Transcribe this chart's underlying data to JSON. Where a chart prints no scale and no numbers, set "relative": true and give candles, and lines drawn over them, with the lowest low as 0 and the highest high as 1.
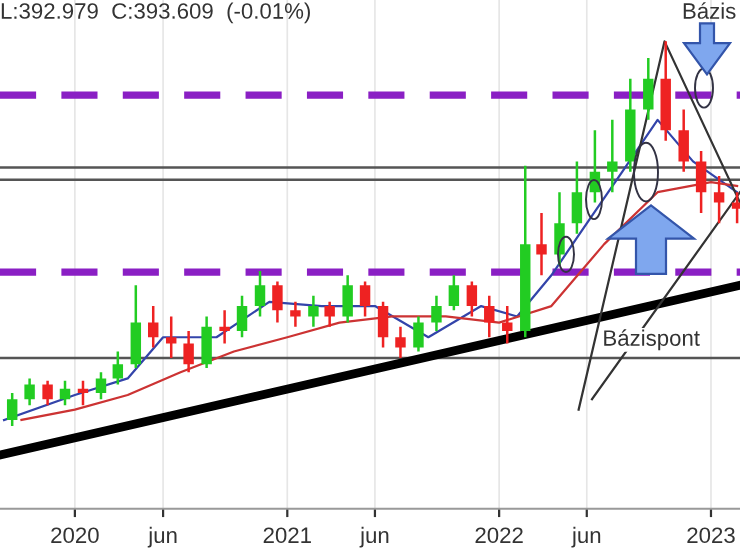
{
  "chart_data": {
    "type": "candlestick",
    "relative": true,
    "x": [
      "2019-09-15",
      "2019-10-15",
      "2019-11-15",
      "2019-12-15",
      "2020-01-15",
      "2020-02-15",
      "2020-03-15",
      "2020-04-15",
      "2020-05-15",
      "2020-06-15",
      "2020-07-15",
      "2020-08-15",
      "2020-09-15",
      "2020-10-15",
      "2020-11-15",
      "2020-12-15",
      "2021-01-15",
      "2021-02-15",
      "2021-03-15",
      "2021-04-15",
      "2021-05-15",
      "2021-06-15",
      "2021-07-15",
      "2021-08-15",
      "2021-09-15",
      "2021-10-15",
      "2021-11-15",
      "2021-12-15",
      "2022-01-15",
      "2022-02-15",
      "2022-03-15",
      "2022-04-15",
      "2022-05-15",
      "2022-06-15",
      "2022-07-15",
      "2022-08-15",
      "2022-09-15",
      "2022-10-15",
      "2022-11-15",
      "2022-12-15",
      "2023-01-15",
      "2023-02-15"
    ],
    "ohlc": [
      [
        0.016,
        0.086,
        0,
        0.07
      ],
      [
        0.07,
        0.124,
        0.054,
        0.108
      ],
      [
        0.108,
        0.118,
        0.054,
        0.07
      ],
      [
        0.07,
        0.118,
        0.054,
        0.097
      ],
      [
        0.097,
        0.118,
        0.054,
        0.086
      ],
      [
        0.086,
        0.14,
        0.07,
        0.124
      ],
      [
        0.124,
        0.194,
        0.108,
        0.161
      ],
      [
        0.161,
        0.366,
        0.151,
        0.269
      ],
      [
        0.269,
        0.312,
        0.204,
        0.231
      ],
      [
        0.231,
        0.285,
        0.177,
        0.215
      ],
      [
        0.215,
        0.247,
        0.14,
        0.161
      ],
      [
        0.161,
        0.285,
        0.151,
        0.258
      ],
      [
        0.258,
        0.301,
        0.215,
        0.247
      ],
      [
        0.247,
        0.339,
        0.231,
        0.312
      ],
      [
        0.312,
        0.403,
        0.285,
        0.366
      ],
      [
        0.366,
        0.376,
        0.269,
        0.301
      ],
      [
        0.301,
        0.323,
        0.258,
        0.285
      ],
      [
        0.285,
        0.339,
        0.258,
        0.312
      ],
      [
        0.312,
        0.323,
        0.258,
        0.285
      ],
      [
        0.285,
        0.392,
        0.269,
        0.366
      ],
      [
        0.366,
        0.376,
        0.285,
        0.312
      ],
      [
        0.312,
        0.323,
        0.204,
        0.231
      ],
      [
        0.231,
        0.258,
        0.177,
        0.204
      ],
      [
        0.204,
        0.285,
        0.194,
        0.269
      ],
      [
        0.269,
        0.339,
        0.247,
        0.312
      ],
      [
        0.312,
        0.392,
        0.301,
        0.366
      ],
      [
        0.366,
        0.376,
        0.285,
        0.312
      ],
      [
        0.312,
        0.339,
        0.231,
        0.269
      ],
      [
        0.269,
        0.312,
        0.215,
        0.247
      ],
      [
        0.247,
        0.677,
        0.231,
        0.473
      ],
      [
        0.473,
        0.554,
        0.392,
        0.446
      ],
      [
        0.446,
        0.608,
        0.419,
        0.527
      ],
      [
        0.527,
        0.688,
        0.5,
        0.608
      ],
      [
        0.608,
        0.769,
        0.581,
        0.661
      ],
      [
        0.661,
        0.796,
        0.608,
        0.688
      ],
      [
        0.688,
        0.903,
        0.661,
        0.823
      ],
      [
        0.823,
        0.957,
        0.796,
        0.903
      ],
      [
        0.903,
        1,
        0.742,
        0.769
      ],
      [
        0.769,
        0.823,
        0.661,
        0.688
      ],
      [
        0.688,
        0.715,
        0.554,
        0.608
      ],
      [
        0.608,
        0.65,
        0.527,
        0.581
      ],
      [
        0.581,
        0.608,
        0.527,
        0.565
      ]
    ],
    "colors": [
      "#22cc22",
      "#22cc22",
      "#ee2222",
      "#22cc22",
      "#ee2222",
      "#22cc22",
      "#22cc22",
      "#22cc22",
      "#ee2222",
      "#ee2222",
      "#ee2222",
      "#22cc22",
      "#ee2222",
      "#22cc22",
      "#22cc22",
      "#ee2222",
      "#ee2222",
      "#22cc22",
      "#ee2222",
      "#22cc22",
      "#ee2222",
      "#ee2222",
      "#ee2222",
      "#22cc22",
      "#22cc22",
      "#22cc22",
      "#ee2222",
      "#ee2222",
      "#ee2222",
      "#22cc22",
      "#ee2222",
      "#22cc22",
      "#22cc22",
      "#22cc22",
      "#22cc22",
      "#22cc22",
      "#22cc22",
      "#ee2222",
      "#ee2222",
      "#ee2222",
      "#ee2222",
      "#ee2222"
    ],
    "series": [
      {
        "type": "line",
        "color": "#3344aa",
        "x": [
          "2019-09-01",
          "2020-01-01",
          "2020-04-01",
          "2020-06-01",
          "2020-09-01",
          "2020-12-01",
          "2021-03-01",
          "2021-06-01",
          "2021-09-01",
          "2021-12-01",
          "2022-02-01",
          "2022-04-01",
          "2022-06-01",
          "2022-08-01",
          "2022-10-01",
          "2022-12-01",
          "2023-02-15"
        ],
        "values": [
          0.016,
          0.081,
          0.124,
          0.231,
          0.231,
          0.323,
          0.312,
          0.312,
          0.231,
          0.312,
          0.285,
          0.392,
          0.527,
          0.661,
          0.796,
          0.688,
          0.608
        ]
      },
      {
        "type": "line",
        "color": "#cc3333",
        "x": [
          "2019-10-01",
          "2020-01-01",
          "2020-04-01",
          "2020-07-01",
          "2020-10-01",
          "2021-01-01",
          "2021-04-01",
          "2021-07-01",
          "2021-10-01",
          "2022-01-01",
          "2022-04-01",
          "2022-07-01",
          "2022-10-01",
          "2023-01-01",
          "2023-02-15"
        ],
        "values": [
          0.016,
          0.043,
          0.081,
          0.14,
          0.194,
          0.231,
          0.269,
          0.285,
          0.285,
          0.269,
          0.312,
          0.473,
          0.608,
          0.634,
          0.624
        ]
      },
      {
        "type": "line",
        "color": "#000000",
        "x": [
          "2019-08-25",
          "2023-02-20"
        ],
        "values": [
          -0.075,
          0.366
        ]
      },
      {
        "type": "line",
        "color": "#333333",
        "x": [
          "2022-05-18",
          "2022-10-13",
          "2023-02-20"
        ],
        "values": [
          0.043,
          1,
          0.581
        ]
      },
      {
        "type": "line",
        "color": "#333333",
        "x": [
          "2022-06-10",
          "2023-02-20"
        ],
        "values": [
          0.07,
          0.608
        ]
      }
    ],
    "ref_lines": [
      {
        "axis": "y",
        "value": 0.86,
        "color": "#8a1fc4",
        "line_style": "dashed"
      },
      {
        "axis": "y",
        "value": 0.4,
        "color": "#8a1fc4",
        "line_style": "dashed"
      },
      {
        "axis": "y",
        "value": 0.672,
        "color": "#555555",
        "line_style": "solid"
      },
      {
        "axis": "y",
        "value": 0.64,
        "color": "#555555",
        "line_style": "solid"
      },
      {
        "axis": "y",
        "value": 0.177,
        "color": "#555555",
        "line_style": "solid",
        "label": "Bázispont"
      }
    ],
    "annotations": [
      "L:392.979  C:393.609  (-0.01%)",
      "Bázis"
    ],
    "xlim": [
      "2019-08-25",
      "2023-02-20"
    ],
    "xticks": [
      {
        "value": "2020-01-01",
        "label": "2020"
      },
      {
        "value": "2020-06-01",
        "label": "jun"
      },
      {
        "value": "2021-01-01",
        "label": "2021"
      },
      {
        "value": "2021-06-01",
        "label": "jun"
      },
      {
        "value": "2022-01-01",
        "label": "2022"
      },
      {
        "value": "2022-06-01",
        "label": "jun"
      },
      {
        "value": "2023-01-01",
        "label": "2023"
      }
    ],
    "grid": "x",
    "legend": false,
    "tick_labels": "x"
  }
}
